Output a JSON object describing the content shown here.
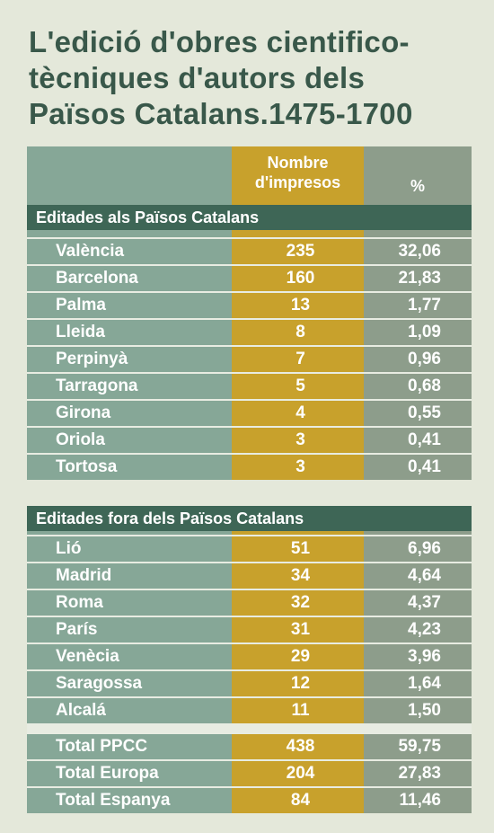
{
  "title": {
    "lines": [
      "L'edició d'obres cientifico-",
      "tècniques d'autors dels",
      "Països Catalans.1475-1700"
    ]
  },
  "table": {
    "header": {
      "count_lines": [
        "Nombre",
        "d'impresos"
      ],
      "percent": "%"
    },
    "sections": [
      {
        "title": "Editades als Països Catalans",
        "rows": [
          [
            "València",
            "235",
            "32,06"
          ],
          [
            "Barcelona",
            "160",
            "21,83"
          ],
          [
            "Palma",
            "13",
            "1,77"
          ],
          [
            "Lleida",
            "8",
            "1,09"
          ],
          [
            "Perpinyà",
            "7",
            "0,96"
          ],
          [
            "Tarragona",
            "5",
            "0,68"
          ],
          [
            "Girona",
            "4",
            "0,55"
          ],
          [
            "Oriola",
            "3",
            "0,41"
          ],
          [
            "Tortosa",
            "3",
            "0,41"
          ]
        ]
      },
      {
        "title": "Editades fora dels Països Catalans",
        "rows": [
          [
            "Lió",
            "51",
            "6,96"
          ],
          [
            "Madrid",
            "34",
            "4,64"
          ],
          [
            "Roma",
            "32",
            "4,37"
          ],
          [
            "París",
            "31",
            "4,23"
          ],
          [
            "Venècia",
            "29",
            "3,96"
          ],
          [
            "Saragossa",
            "12",
            "1,64"
          ],
          [
            "Alcalá",
            "11",
            "1,50"
          ]
        ]
      }
    ],
    "totals": [
      [
        "Total PPCC",
        "438",
        "59,75"
      ],
      [
        "Total Europa",
        "204",
        "27,83"
      ],
      [
        "Total Espanya",
        "84",
        "11,46"
      ]
    ]
  }
}
